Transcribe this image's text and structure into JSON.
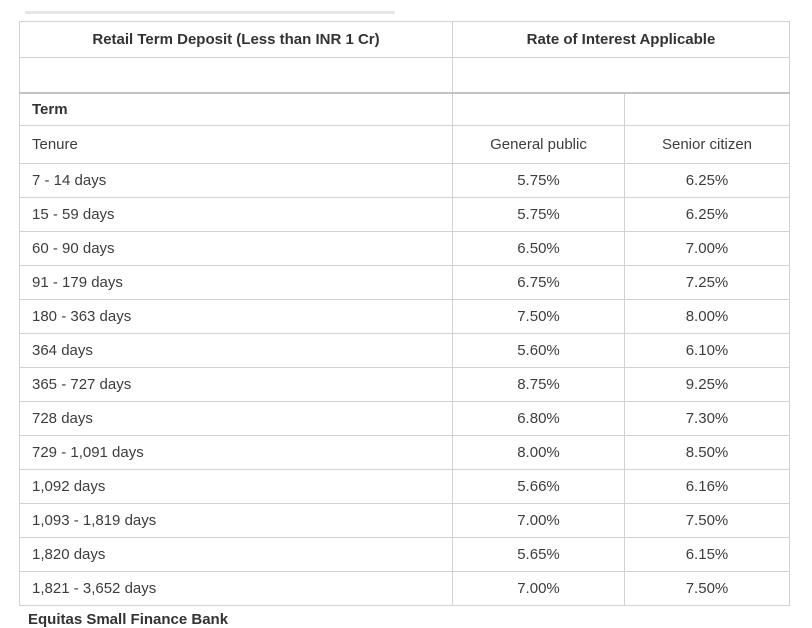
{
  "chart_data": {
    "type": "table",
    "header": {
      "deposit_type": "Retail Term Deposit (Less than INR 1 Cr)",
      "rate_header": "Rate of Interest Applicable"
    },
    "section_label": "Term",
    "columns": {
      "tenure": "Tenure",
      "general": "General public",
      "senior": "Senior citizen"
    },
    "rows": [
      {
        "tenure": "7 - 14 days",
        "general": "5.75%",
        "senior": "6.25%"
      },
      {
        "tenure": "15 - 59 days",
        "general": "5.75%",
        "senior": "6.25%"
      },
      {
        "tenure": "60 - 90 days",
        "general": "6.50%",
        "senior": "7.00%"
      },
      {
        "tenure": "91 - 179 days",
        "general": "6.75%",
        "senior": "7.25%"
      },
      {
        "tenure": "180 - 363 days",
        "general": "7.50%",
        "senior": "8.00%"
      },
      {
        "tenure": "364 days",
        "general": "5.60%",
        "senior": "6.10%"
      },
      {
        "tenure": "365 - 727 days",
        "general": "8.75%",
        "senior": "9.25%"
      },
      {
        "tenure": "728 days",
        "general": "6.80%",
        "senior": "7.30%"
      },
      {
        "tenure": "729 - 1,091 days",
        "general": "8.00%",
        "senior": "8.50%"
      },
      {
        "tenure": "1,092 days",
        "general": "5.66%",
        "senior": "6.16%"
      },
      {
        "tenure": "1,093 - 1,819 days",
        "general": "7.00%",
        "senior": "7.50%"
      },
      {
        "tenure": "1,820 days",
        "general": "5.65%",
        "senior": "6.15%"
      },
      {
        "tenure": "1,821 - 3,652 days",
        "general": "7.00%",
        "senior": "7.50%"
      }
    ]
  },
  "caption": "Equitas Small Finance Bank",
  "colors": {
    "background": "#ffffff",
    "border": "#d2d2d2",
    "border_strong": "#c3c3c3",
    "heading_text": "#333333",
    "body_text": "#3d3d3d"
  }
}
